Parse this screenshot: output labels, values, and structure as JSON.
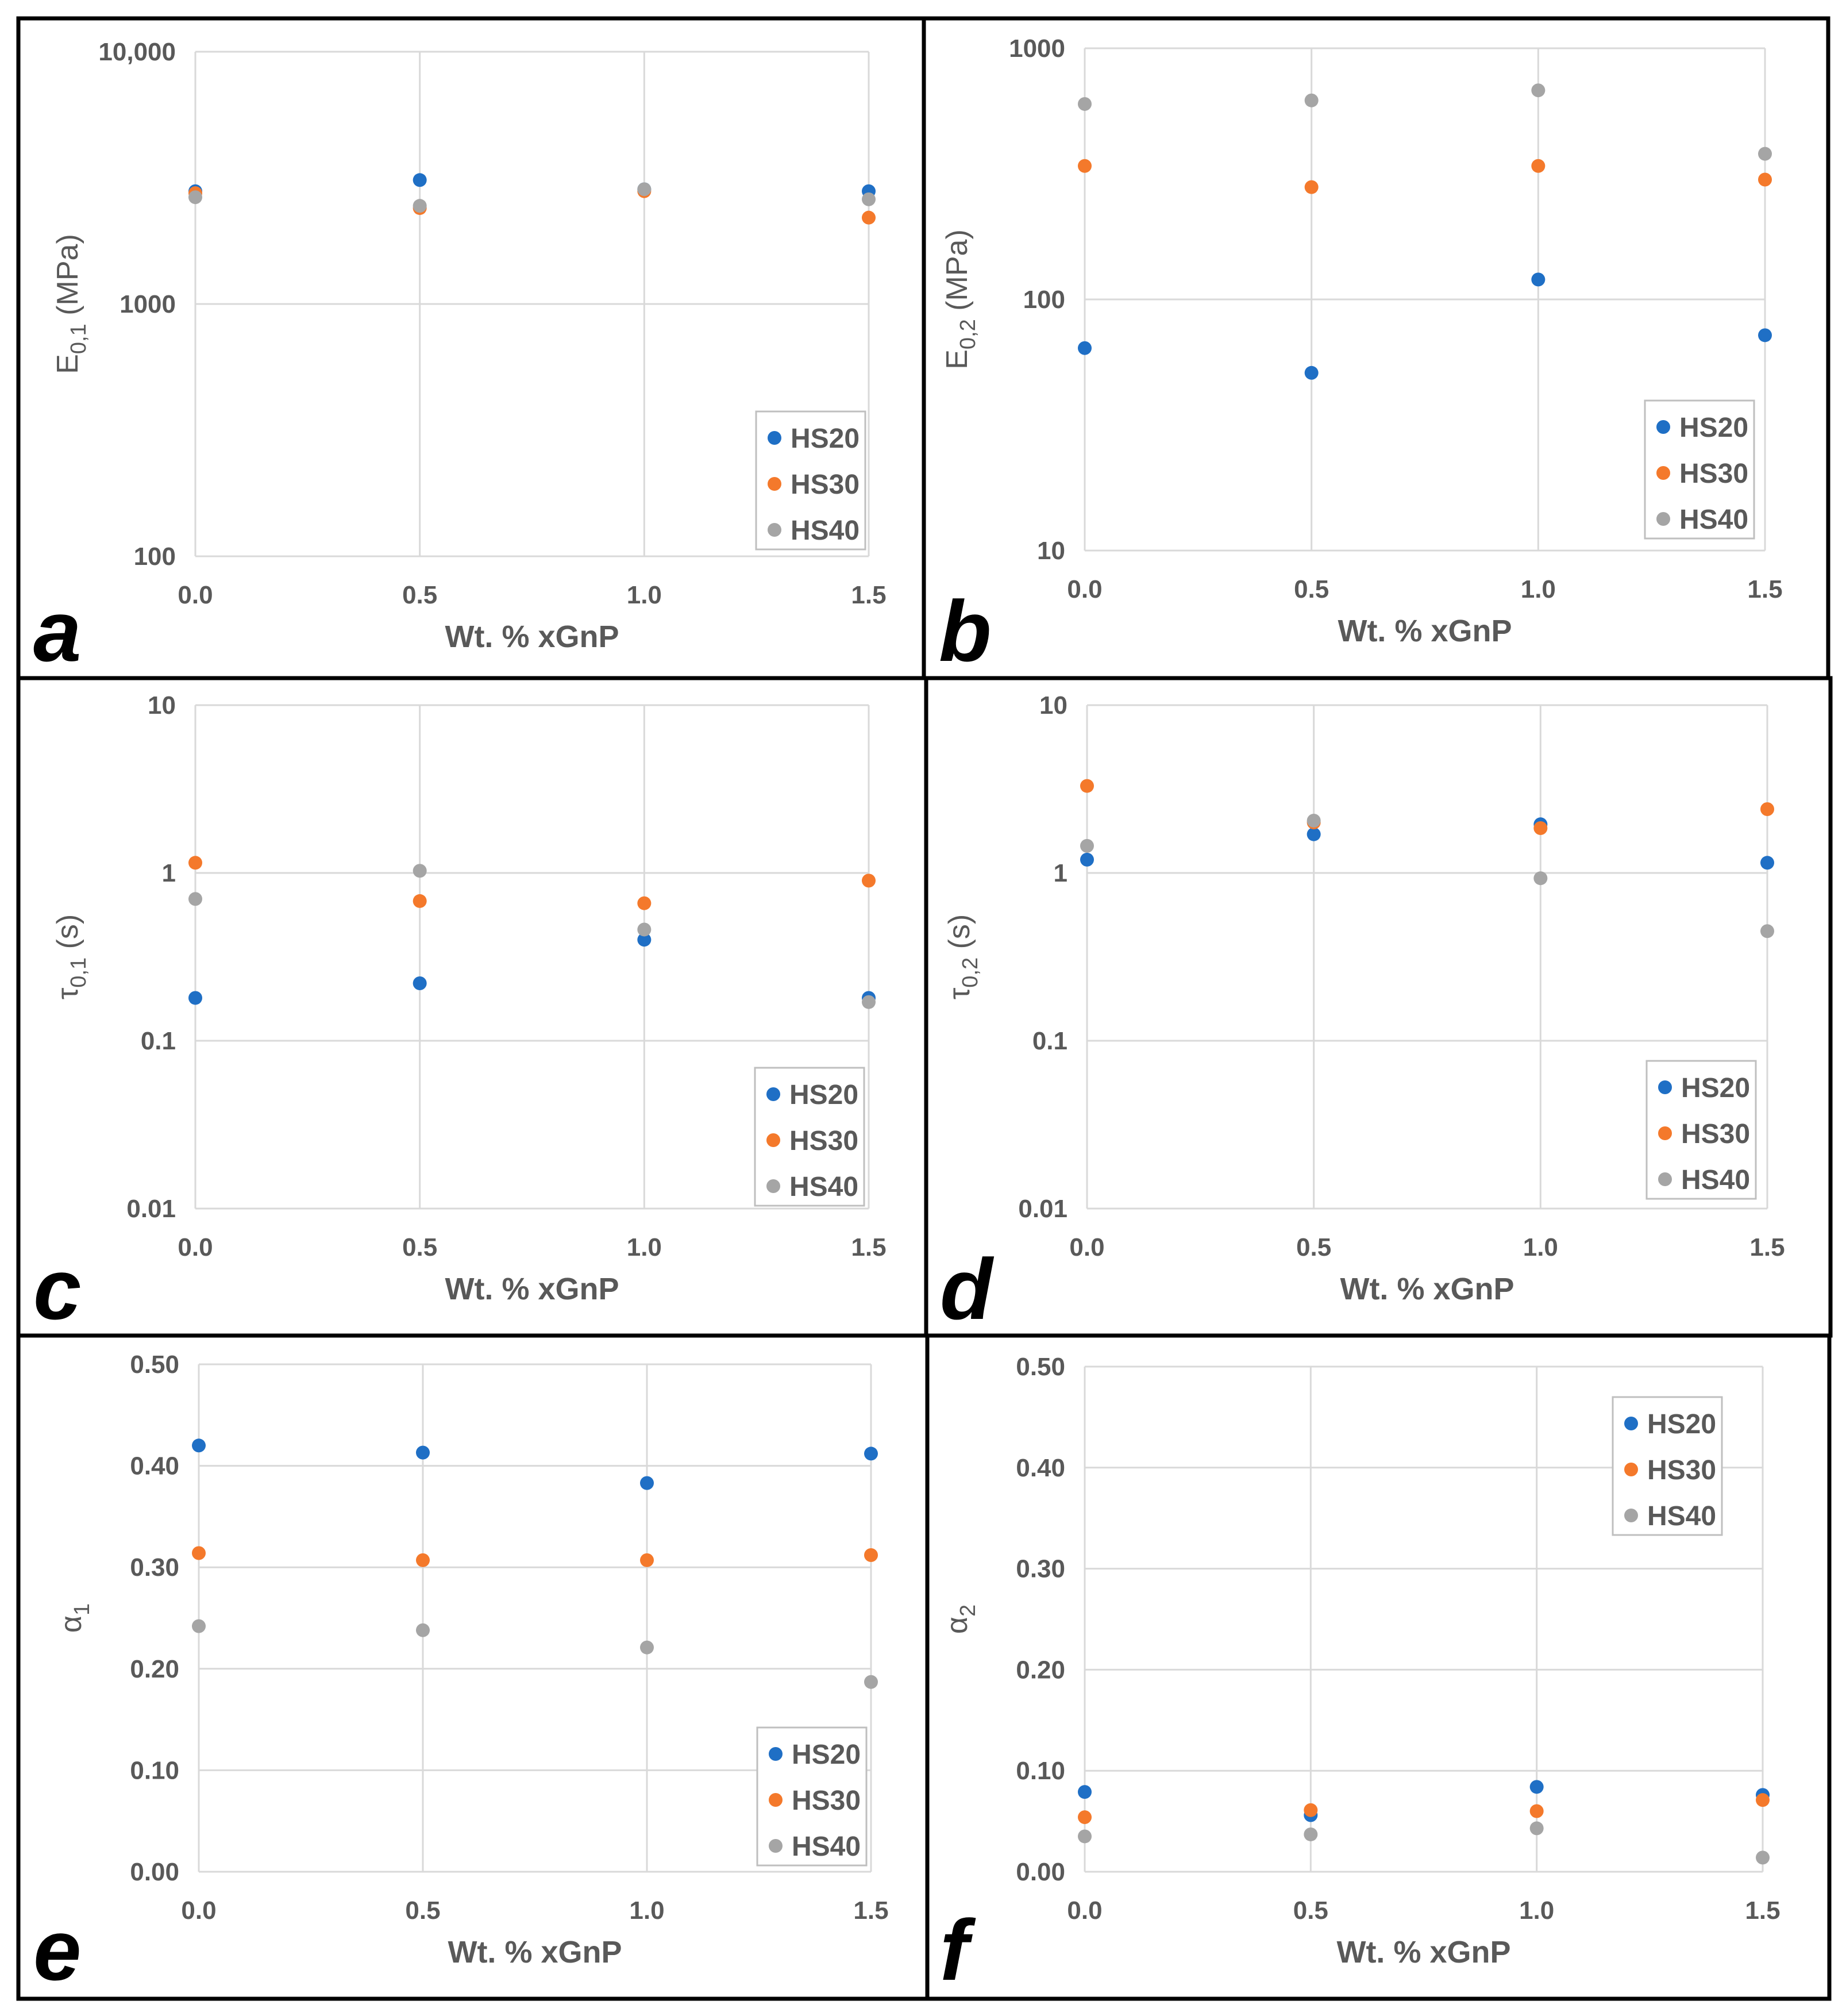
{
  "colors": {
    "HS20": "#1f6fc5",
    "HS30": "#f4792b",
    "HS40": "#a5a5a5"
  },
  "chart_data": [
    {
      "type": "scatter",
      "panel": "a",
      "scale": "log",
      "ylim": [
        100,
        10000
      ],
      "yticks": [
        "100",
        "1000",
        "10,000"
      ],
      "xticks": [
        "0.0",
        "0.5",
        "1.0",
        "1.5"
      ],
      "xlim": [
        0,
        1.5
      ],
      "xlabel": "Wt. % xGnP",
      "ylabel_main": "E",
      "ylabel_sub": "0,1",
      "ylabel_tail": " (MPa)",
      "legend_position": "bottom-right",
      "x": [
        0,
        0.5,
        1.0,
        1.5
      ],
      "series": [
        {
          "name": "HS20",
          "values": [
            2800,
            3100,
            2850,
            2800
          ]
        },
        {
          "name": "HS30",
          "values": [
            2750,
            2400,
            2800,
            2200
          ]
        },
        {
          "name": "HS40",
          "values": [
            2650,
            2450,
            2850,
            2600
          ]
        }
      ]
    },
    {
      "type": "scatter",
      "panel": "b",
      "scale": "log",
      "ylim": [
        10,
        1000
      ],
      "yticks": [
        "10",
        "100",
        "1000"
      ],
      "xticks": [
        "0.0",
        "0.5",
        "1.0",
        "1.5"
      ],
      "xlim": [
        0,
        1.5
      ],
      "xlabel": "Wt. % xGnP",
      "ylabel_main": "E",
      "ylabel_sub": "0,2",
      "ylabel_tail": " (MPa)",
      "legend_position": "bottom-right",
      "x": [
        0,
        0.5,
        1.0,
        1.5
      ],
      "series": [
        {
          "name": "HS20",
          "values": [
            64,
            51,
            120,
            72
          ]
        },
        {
          "name": "HS30",
          "values": [
            340,
            280,
            340,
            300
          ]
        },
        {
          "name": "HS40",
          "values": [
            600,
            620,
            680,
            380
          ]
        }
      ]
    },
    {
      "type": "scatter",
      "panel": "c",
      "scale": "log",
      "ylim": [
        0.01,
        10
      ],
      "yticks": [
        "0.01",
        "0.1",
        "1",
        "10"
      ],
      "xticks": [
        "0.0",
        "0.5",
        "1.0",
        "1.5"
      ],
      "xlim": [
        0,
        1.5
      ],
      "xlabel": "Wt. % xGnP",
      "ylabel_main": "τ",
      "ylabel_sub": "0,1",
      "ylabel_tail": " (s)",
      "legend_position": "bottom-right",
      "x": [
        0,
        0.5,
        1.0,
        1.5
      ],
      "series": [
        {
          "name": "HS20",
          "values": [
            0.18,
            0.22,
            0.4,
            0.18
          ]
        },
        {
          "name": "HS30",
          "values": [
            1.15,
            0.68,
            0.66,
            0.9
          ]
        },
        {
          "name": "HS40",
          "values": [
            0.7,
            1.03,
            0.46,
            0.17
          ]
        }
      ]
    },
    {
      "type": "scatter",
      "panel": "d",
      "scale": "log",
      "ylim": [
        0.01,
        10
      ],
      "yticks": [
        "0.01",
        "0.1",
        "1",
        "10"
      ],
      "xticks": [
        "0.0",
        "0.5",
        "1.0",
        "1.5"
      ],
      "xlim": [
        0,
        1.5
      ],
      "xlabel": "Wt. % xGnP",
      "ylabel_main": "τ",
      "ylabel_sub": "0,2",
      "ylabel_tail": " (s)",
      "legend_position": "bottom-right",
      "x": [
        0,
        0.5,
        1.0,
        1.5
      ],
      "series": [
        {
          "name": "HS20",
          "values": [
            1.2,
            1.7,
            1.95,
            1.15
          ]
        },
        {
          "name": "HS30",
          "values": [
            3.3,
            2.0,
            1.85,
            2.4
          ]
        },
        {
          "name": "HS40",
          "values": [
            1.45,
            2.05,
            0.93,
            0.45
          ]
        }
      ]
    },
    {
      "type": "scatter",
      "panel": "e",
      "scale": "linear",
      "ylim": [
        0,
        0.5
      ],
      "yticks": [
        "0.00",
        "0.10",
        "0.20",
        "0.30",
        "0.40",
        "0.50"
      ],
      "xticks": [
        "0.0",
        "0.5",
        "1.0",
        "1.5"
      ],
      "xlim": [
        0,
        1.5
      ],
      "xlabel": "Wt. % xGnP",
      "ylabel_main": "α",
      "ylabel_sub": "1",
      "ylabel_tail": "",
      "legend_position": "bottom-right",
      "x": [
        0,
        0.5,
        1.0,
        1.5
      ],
      "series": [
        {
          "name": "HS20",
          "values": [
            0.42,
            0.413,
            0.383,
            0.412
          ]
        },
        {
          "name": "HS30",
          "values": [
            0.314,
            0.307,
            0.307,
            0.312
          ]
        },
        {
          "name": "HS40",
          "values": [
            0.242,
            0.238,
            0.221,
            0.187
          ]
        }
      ]
    },
    {
      "type": "scatter",
      "panel": "f",
      "scale": "linear",
      "ylim": [
        0,
        0.5
      ],
      "yticks": [
        "0.00",
        "0.10",
        "0.20",
        "0.30",
        "0.40",
        "0.50"
      ],
      "xticks": [
        "0.0",
        "0.5",
        "1.0",
        "1.5"
      ],
      "xlim": [
        0,
        1.5
      ],
      "xlabel": "Wt. % xGnP",
      "ylabel_main": "α",
      "ylabel_sub": "2",
      "ylabel_tail": "",
      "legend_position": "top-right",
      "x": [
        0,
        0.5,
        1.0,
        1.5
      ],
      "series": [
        {
          "name": "HS20",
          "values": [
            0.079,
            0.056,
            0.084,
            0.076
          ]
        },
        {
          "name": "HS30",
          "values": [
            0.054,
            0.061,
            0.06,
            0.071
          ]
        },
        {
          "name": "HS40",
          "values": [
            0.035,
            0.037,
            0.043,
            0.014
          ]
        }
      ]
    }
  ]
}
